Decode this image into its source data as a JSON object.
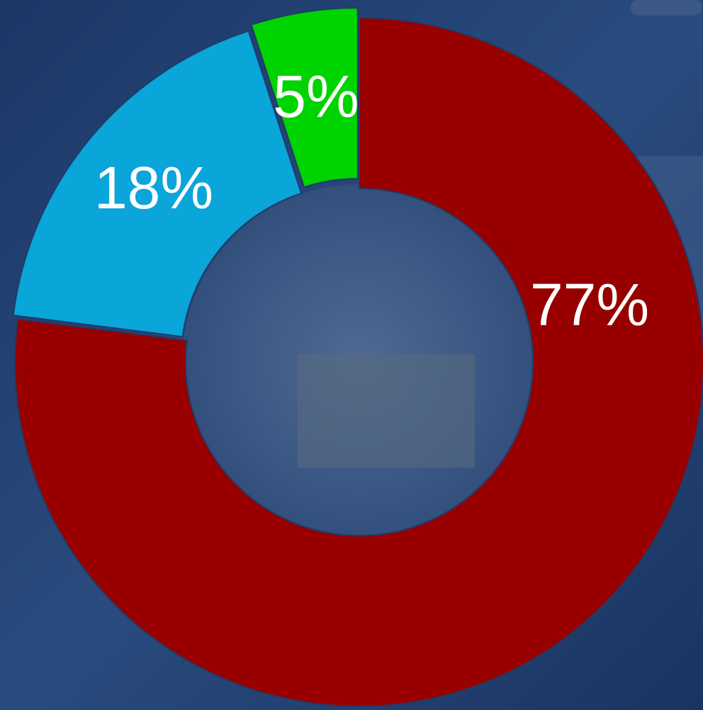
{
  "chart_data": {
    "type": "donut",
    "values": [
      77,
      18,
      5
    ],
    "value_labels": [
      "77%",
      "18%",
      "5%"
    ],
    "colors": [
      "#980000",
      "#0aa5d9",
      "#00d400"
    ],
    "start_angle": 0,
    "direction": "clockwise"
  }
}
